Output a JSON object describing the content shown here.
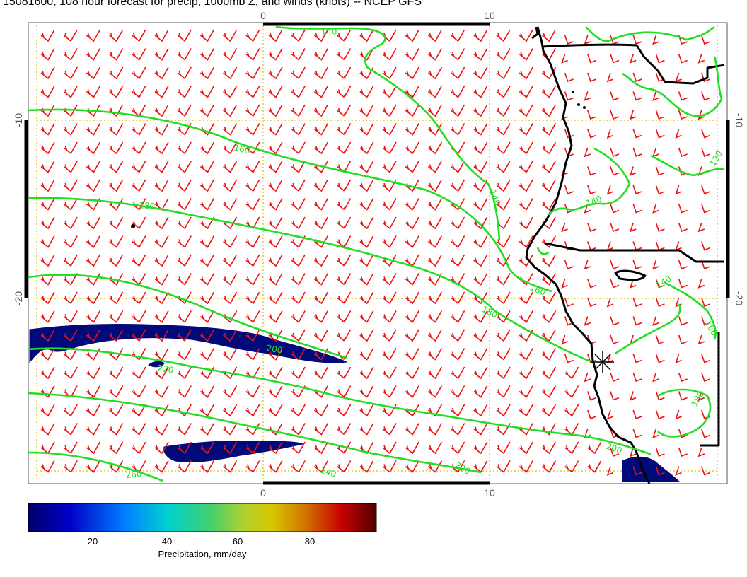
{
  "title": "15081600, 108 hour forecast for precip, 1000mb Z, and winds (knots) -- NCEP GFS",
  "map": {
    "lon_ticks": [
      "0",
      "10"
    ],
    "lat_ticks": [
      "-10",
      "-20"
    ],
    "contour_labels": [
      "140",
      "160",
      "180",
      "200",
      "220",
      "240",
      "260",
      "120"
    ],
    "colors": {
      "contour": "#22dd22",
      "barb": "#ee1111",
      "grid": "#ddbb00",
      "coast": "#000000",
      "precip": "#000a7a"
    }
  },
  "colorbar": {
    "labels": [
      "20",
      "40",
      "60",
      "80"
    ],
    "title": "Precipitation, mm/day",
    "colors": [
      "#00006a",
      "#0000c8",
      "#0080ff",
      "#00d0d0",
      "#40d070",
      "#b0d030",
      "#d8c800",
      "#d07000",
      "#c80000",
      "#500000"
    ]
  }
}
